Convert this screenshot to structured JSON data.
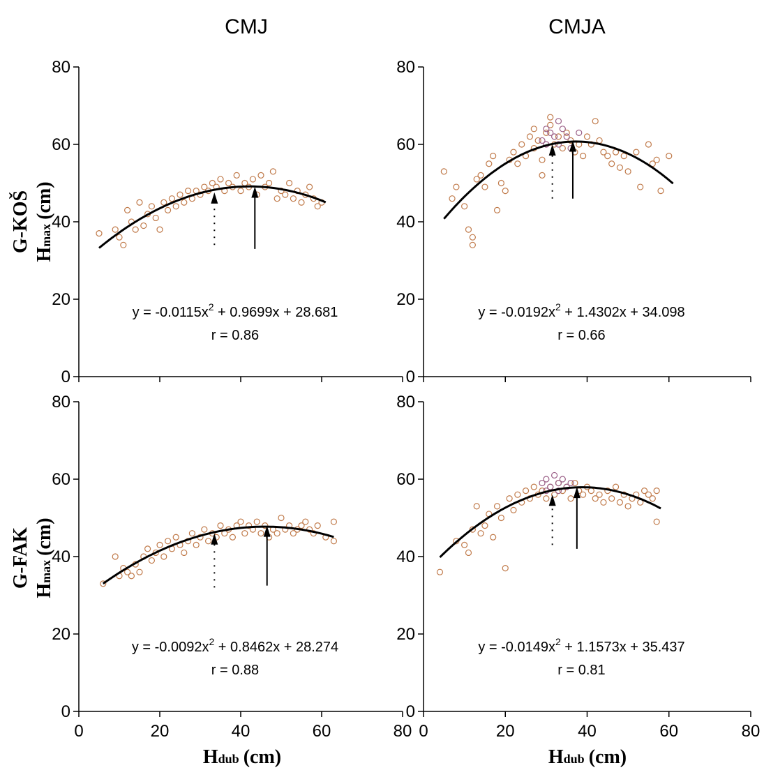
{
  "column_titles": [
    "CMJ",
    "CMJA"
  ],
  "row_labels": [
    {
      "group": "G-KOŠ",
      "var": "H",
      "sub": "max",
      "unit": "(cm)"
    },
    {
      "group": "G-FAK",
      "var": "H",
      "sub": "max",
      "unit": "(cm)"
    }
  ],
  "x_axis_title": {
    "var": "H",
    "sub": "dub",
    "unit": "(cm)"
  },
  "colors": {
    "points_primary": "#c07a4a",
    "points_secondary": "#9a5e86",
    "fit_line": "#000000",
    "axis": "#000000"
  },
  "chart_data": [
    {
      "type": "scatter",
      "panel": "top-left",
      "xlim": [
        0,
        80
      ],
      "ylim": [
        0,
        80
      ],
      "xticks": [
        "0",
        "20",
        "40",
        "60",
        "80"
      ],
      "yticks": [
        "0",
        "20",
        "40",
        "60",
        "80"
      ],
      "equation": {
        "a": "y = -0.0115x",
        "sup": "2",
        "b": " + 0.9699x + 28.681"
      },
      "r_label": "r = 0.86",
      "fit": {
        "a": -0.0115,
        "b": 0.9699,
        "c": 28.681,
        "x_range": [
          5,
          61
        ]
      },
      "arrows": [
        {
          "x": 33.5,
          "y_from": 34,
          "y_to": 47.6,
          "style": "dotted"
        },
        {
          "x": 43.5,
          "y_from": 33,
          "y_to": 49.1,
          "style": "solid"
        }
      ],
      "points": [
        [
          5,
          37
        ],
        [
          9,
          38
        ],
        [
          10,
          36
        ],
        [
          11,
          34
        ],
        [
          12,
          43
        ],
        [
          13,
          40
        ],
        [
          14,
          38
        ],
        [
          15,
          45
        ],
        [
          16,
          39
        ],
        [
          17,
          42
        ],
        [
          18,
          44
        ],
        [
          19,
          41
        ],
        [
          20,
          38
        ],
        [
          21,
          45
        ],
        [
          22,
          43
        ],
        [
          23,
          46
        ],
        [
          24,
          44
        ],
        [
          25,
          47
        ],
        [
          26,
          45
        ],
        [
          27,
          48
        ],
        [
          28,
          46
        ],
        [
          29,
          48
        ],
        [
          30,
          47
        ],
        [
          31,
          49
        ],
        [
          32,
          48
        ],
        [
          33,
          50
        ],
        [
          34,
          49
        ],
        [
          35,
          51
        ],
        [
          36,
          48
        ],
        [
          37,
          50
        ],
        [
          38,
          49
        ],
        [
          39,
          52
        ],
        [
          40,
          48
        ],
        [
          41,
          50
        ],
        [
          42,
          49
        ],
        [
          43,
          51
        ],
        [
          44,
          47
        ],
        [
          45,
          52
        ],
        [
          46,
          49
        ],
        [
          47,
          50
        ],
        [
          48,
          53
        ],
        [
          49,
          46
        ],
        [
          50,
          48
        ],
        [
          51,
          47
        ],
        [
          52,
          50
        ],
        [
          53,
          46
        ],
        [
          54,
          48
        ],
        [
          55,
          45
        ],
        [
          56,
          47
        ],
        [
          57,
          49
        ],
        [
          58,
          46
        ],
        [
          59,
          44
        ],
        [
          60,
          45
        ]
      ]
    },
    {
      "type": "scatter",
      "panel": "top-right",
      "xlim": [
        0,
        80
      ],
      "ylim": [
        0,
        80
      ],
      "xticks": [
        "0",
        "20",
        "40",
        "60",
        "80"
      ],
      "yticks": [
        "0",
        "20",
        "40",
        "60",
        "80"
      ],
      "equation": {
        "a": "y = -0.0192x",
        "sup": "2",
        "b": " + 1.4302x + 34.098"
      },
      "r_label": "r = 0.66",
      "fit": {
        "a": -0.0192,
        "b": 1.4302,
        "c": 34.098,
        "x_range": [
          5,
          61
        ]
      },
      "arrows": [
        {
          "x": 31.5,
          "y_from": 46,
          "y_to": 60,
          "style": "dotted"
        },
        {
          "x": 36.5,
          "y_from": 46,
          "y_to": 61,
          "style": "solid"
        }
      ],
      "points": [
        [
          5,
          53
        ],
        [
          7,
          46
        ],
        [
          8,
          49
        ],
        [
          10,
          44
        ],
        [
          11,
          38
        ],
        [
          12,
          36
        ],
        [
          12,
          34
        ],
        [
          13,
          51
        ],
        [
          14,
          52
        ],
        [
          15,
          49
        ],
        [
          16,
          55
        ],
        [
          17,
          57
        ],
        [
          18,
          43
        ],
        [
          19,
          50
        ],
        [
          20,
          48
        ],
        [
          21,
          56
        ],
        [
          22,
          58
        ],
        [
          23,
          55
        ],
        [
          24,
          60
        ],
        [
          25,
          57
        ],
        [
          26,
          62
        ],
        [
          27,
          59
        ],
        [
          28,
          61
        ],
        [
          29,
          56
        ],
        [
          30,
          63
        ],
        [
          31,
          65
        ],
        [
          32,
          60
        ],
        [
          33,
          62
        ],
        [
          34,
          59
        ],
        [
          35,
          63
        ],
        [
          36,
          61
        ],
        [
          37,
          58
        ],
        [
          38,
          60
        ],
        [
          39,
          57
        ],
        [
          40,
          62
        ],
        [
          41,
          60
        ],
        [
          42,
          66
        ],
        [
          43,
          61
        ],
        [
          44,
          58
        ],
        [
          45,
          57
        ],
        [
          46,
          55
        ],
        [
          47,
          58
        ],
        [
          48,
          54
        ],
        [
          49,
          57
        ],
        [
          50,
          53
        ],
        [
          52,
          58
        ],
        [
          53,
          49
        ],
        [
          55,
          60
        ],
        [
          56,
          55
        ],
        [
          57,
          56
        ],
        [
          58,
          48
        ],
        [
          60,
          57
        ],
        [
          31,
          67
        ],
        [
          29,
          52
        ],
        [
          27,
          64
        ]
      ],
      "secondary_points": [
        [
          29,
          61
        ],
        [
          30,
          64
        ],
        [
          31,
          63
        ],
        [
          32,
          62
        ],
        [
          33,
          60
        ],
        [
          34,
          64
        ],
        [
          35,
          62
        ],
        [
          36,
          59
        ],
        [
          38,
          63
        ],
        [
          30,
          60
        ],
        [
          33,
          66
        ]
      ]
    },
    {
      "type": "scatter",
      "panel": "bottom-left",
      "xlim": [
        0,
        80
      ],
      "ylim": [
        0,
        80
      ],
      "xticks": [
        "0",
        "20",
        "40",
        "60",
        "80"
      ],
      "yticks": [
        "0",
        "20",
        "40",
        "60",
        "80"
      ],
      "equation": {
        "a": "y = -0.0092x",
        "sup": "2",
        "b": " + 0.8462x + 28.274"
      },
      "r_label": "r = 0.88",
      "fit": {
        "a": -0.0092,
        "b": 0.8462,
        "c": 28.274,
        "x_range": [
          6,
          63
        ]
      },
      "arrows": [
        {
          "x": 33.5,
          "y_from": 32,
          "y_to": 46,
          "style": "dotted"
        },
        {
          "x": 46.5,
          "y_from": 32.5,
          "y_to": 48,
          "style": "solid"
        }
      ],
      "points": [
        [
          6,
          33
        ],
        [
          9,
          40
        ],
        [
          10,
          35
        ],
        [
          11,
          37
        ],
        [
          12,
          36
        ],
        [
          13,
          35
        ],
        [
          14,
          38
        ],
        [
          15,
          36
        ],
        [
          16,
          40
        ],
        [
          17,
          42
        ],
        [
          18,
          39
        ],
        [
          19,
          41
        ],
        [
          20,
          43
        ],
        [
          21,
          40
        ],
        [
          22,
          44
        ],
        [
          23,
          42
        ],
        [
          24,
          45
        ],
        [
          25,
          43
        ],
        [
          26,
          41
        ],
        [
          27,
          44
        ],
        [
          28,
          46
        ],
        [
          29,
          43
        ],
        [
          30,
          45
        ],
        [
          31,
          47
        ],
        [
          32,
          44
        ],
        [
          33,
          46
        ],
        [
          34,
          45
        ],
        [
          35,
          48
        ],
        [
          36,
          46
        ],
        [
          37,
          47
        ],
        [
          38,
          45
        ],
        [
          39,
          48
        ],
        [
          40,
          49
        ],
        [
          41,
          46
        ],
        [
          42,
          48
        ],
        [
          43,
          47
        ],
        [
          44,
          49
        ],
        [
          45,
          46
        ],
        [
          46,
          48
        ],
        [
          47,
          45
        ],
        [
          48,
          47
        ],
        [
          49,
          46
        ],
        [
          50,
          50
        ],
        [
          51,
          47
        ],
        [
          52,
          48
        ],
        [
          53,
          46
        ],
        [
          54,
          47
        ],
        [
          55,
          48
        ],
        [
          56,
          49
        ],
        [
          57,
          47
        ],
        [
          58,
          46
        ],
        [
          59,
          48
        ],
        [
          61,
          45
        ],
        [
          63,
          49
        ],
        [
          63,
          44
        ]
      ]
    },
    {
      "type": "scatter",
      "panel": "bottom-right",
      "xlim": [
        0,
        80
      ],
      "ylim": [
        0,
        80
      ],
      "xticks": [
        "0",
        "20",
        "40",
        "60",
        "80"
      ],
      "yticks": [
        "0",
        "20",
        "40",
        "60",
        "80"
      ],
      "equation": {
        "a": "y = -0.0149x",
        "sup": "2",
        "b": " + 1.1573x + 35.437"
      },
      "r_label": "r = 0.81",
      "fit": {
        "a": -0.0149,
        "b": 1.1573,
        "c": 35.437,
        "x_range": [
          4,
          58
        ]
      },
      "arrows": [
        {
          "x": 31.5,
          "y_from": 43,
          "y_to": 56,
          "style": "dotted"
        },
        {
          "x": 37.5,
          "y_from": 42,
          "y_to": 58,
          "style": "solid"
        }
      ],
      "points": [
        [
          4,
          36
        ],
        [
          8,
          44
        ],
        [
          10,
          43
        ],
        [
          11,
          41
        ],
        [
          12,
          47
        ],
        [
          13,
          53
        ],
        [
          14,
          46
        ],
        [
          15,
          48
        ],
        [
          16,
          51
        ],
        [
          17,
          45
        ],
        [
          18,
          53
        ],
        [
          19,
          50
        ],
        [
          20,
          37
        ],
        [
          21,
          55
        ],
        [
          22,
          52
        ],
        [
          23,
          56
        ],
        [
          24,
          54
        ],
        [
          25,
          57
        ],
        [
          26,
          55
        ],
        [
          27,
          58
        ],
        [
          28,
          56
        ],
        [
          29,
          57
        ],
        [
          30,
          55
        ],
        [
          31,
          58
        ],
        [
          32,
          56
        ],
        [
          33,
          59
        ],
        [
          34,
          57
        ],
        [
          35,
          58
        ],
        [
          36,
          55
        ],
        [
          37,
          59
        ],
        [
          38,
          57
        ],
        [
          39,
          56
        ],
        [
          40,
          58
        ],
        [
          41,
          57
        ],
        [
          42,
          55
        ],
        [
          43,
          56
        ],
        [
          44,
          54
        ],
        [
          45,
          57
        ],
        [
          46,
          55
        ],
        [
          47,
          58
        ],
        [
          48,
          54
        ],
        [
          49,
          56
        ],
        [
          50,
          53
        ],
        [
          51,
          55
        ],
        [
          52,
          56
        ],
        [
          53,
          54
        ],
        [
          54,
          57
        ],
        [
          55,
          56
        ],
        [
          56,
          55
        ],
        [
          57,
          57
        ],
        [
          57,
          49
        ]
      ],
      "secondary_points": [
        [
          29,
          59
        ],
        [
          30,
          60
        ],
        [
          31,
          58
        ],
        [
          32,
          61
        ],
        [
          33,
          59
        ],
        [
          34,
          60
        ],
        [
          35,
          58
        ],
        [
          36,
          59
        ],
        [
          30,
          57
        ],
        [
          33,
          57
        ]
      ]
    }
  ]
}
